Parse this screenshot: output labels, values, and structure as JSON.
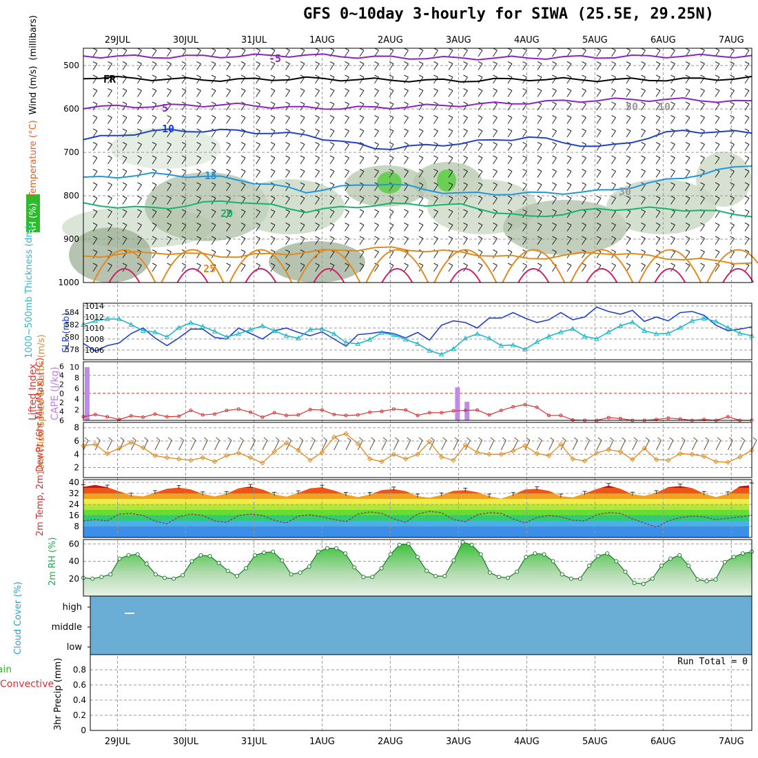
{
  "page": {
    "title": "GFS 0~10day 3-hourly for SIWA (25.5E, 29.25N)",
    "colors": {
      "purple": "#8a22c4",
      "blue": "#1f3fd0",
      "cyan": "#1e96e0",
      "green": "#13b56a",
      "orange": "#e08a1e",
      "magenta": "#d0206a",
      "grid": "#999999",
      "cloud": "#6aaed6"
    }
  },
  "chart_data": [
    {
      "type": "heatmap",
      "name": "upper-air",
      "ylabel_parts": [
        "RH (%)",
        "Temperature (°C)",
        "Wind (m/s)",
        "(millibars)"
      ],
      "yticks": [
        500,
        600,
        700,
        800,
        900,
        1000
      ],
      "ylim": [
        460,
        1000
      ],
      "dates": [
        "29JUL",
        "30JUL",
        "31JUL",
        "1AUG",
        "2AUG",
        "3AUG",
        "4AUG",
        "5AUG",
        "6AUG",
        "7AUG"
      ],
      "x_days": [
        0.5,
        1.5,
        2.5,
        3.5,
        4.5,
        5.5,
        6.5,
        7.5,
        8.5,
        9.5
      ],
      "xlim": [
        0,
        9.8
      ],
      "contours": [
        {
          "label": "-5",
          "color": "#8a22c4",
          "values": [
            478,
            480,
            478,
            476,
            481,
            483,
            482,
            480,
            478,
            478
          ]
        },
        {
          "label": "FR",
          "color": "#000000",
          "values": [
            527,
            531,
            533,
            530,
            533,
            535,
            531,
            533,
            532,
            529
          ]
        },
        {
          "label": "5",
          "color": "#8a22c4",
          "values": [
            596,
            593,
            590,
            598,
            597,
            591,
            585,
            579,
            578,
            584
          ]
        },
        {
          "label": "10",
          "color": "#1f3fd0",
          "values": [
            670,
            650,
            650,
            660,
            692,
            680,
            665,
            690,
            650,
            655
          ]
        },
        {
          "label": "15",
          "color": "#1e96e0",
          "values": [
            760,
            750,
            760,
            790,
            770,
            795,
            795,
            790,
            760,
            728
          ]
        },
        {
          "label": "20",
          "color": "#13b56a",
          "values": [
            820,
            830,
            810,
            835,
            820,
            820,
            850,
            830,
            830,
            845
          ]
        },
        {
          "label": "25",
          "color": "#e08a1e",
          "values": [
            940,
            930,
            940,
            930,
            920,
            930,
            945,
            930,
            945,
            955
          ]
        }
      ],
      "contour_labels": [
        "-5",
        "FR",
        "5",
        "10",
        "15",
        "20",
        "25",
        "50",
        "30",
        "10"
      ]
    },
    {
      "type": "line",
      "name": "thickness-slp",
      "ylabel_left": "1000~500mb Thickness (dm)",
      "ylabel_right": "SLP (mb)",
      "yticks_left": [
        578,
        580,
        582,
        584
      ],
      "yticks_right": [
        1006,
        1008,
        1010,
        1012,
        1014
      ],
      "series": [
        {
          "name": "SLP (mb)",
          "color": "#1f3fd0",
          "values": [
            1007.2,
            1005.8,
            1006.8,
            1007.3,
            1009.0,
            1010.0,
            1008.2,
            1006.8,
            1008.2,
            1009.8,
            1009.8,
            1008.3,
            1008.0,
            1010.0,
            1009.0,
            1008.0,
            1009.5,
            1010.0,
            1009.2,
            1008.6,
            1009.3,
            1008.0,
            1006.7,
            1008.8,
            1009.0,
            1009.3,
            1009.0,
            1008.2,
            1009.2,
            1007.8,
            1010.5,
            1011.3,
            1011.0,
            1010.0,
            1011.8,
            1011.8,
            1012.8,
            1011.8,
            1011.0,
            1011.5,
            1012.8,
            1011.5,
            1012.0,
            1013.8,
            1013.0,
            1012.5,
            1013.2,
            1011.2,
            1012.0,
            1011.3,
            1012.8,
            1013.0,
            1012.3,
            1010.5,
            1009.5,
            1009.8,
            1010.2
          ],
          "axis": "right"
        },
        {
          "name": "Thickness (dm)",
          "color": "#20b8c8",
          "values": [
            582.0,
            582.6,
            582.9,
            582.9,
            582.0,
            581.0,
            580.8,
            580.0,
            581.5,
            582.3,
            581.7,
            580.9,
            580.0,
            580.5,
            581.2,
            581.8,
            581.0,
            580.2,
            579.8,
            581.2,
            581.3,
            580.5,
            579.1,
            578.9,
            579.6,
            580.7,
            580.3,
            579.6,
            578.9,
            577.8,
            577.2,
            578.1,
            579.8,
            580.5,
            579.8,
            578.6,
            578.7,
            578.0,
            579.2,
            580.1,
            580.8,
            581.3,
            580.1,
            579.7,
            580.8,
            581.8,
            582.4,
            581.0,
            580.5,
            580.6,
            581.5,
            582.6,
            583.0,
            582.5,
            581.5,
            580.6,
            580.2
          ],
          "axis": "left"
        }
      ]
    },
    {
      "type": "bar",
      "name": "cape-lifted-index",
      "ylabel_left": "Lifted Index",
      "ylabel_right": "CAPE (J/kg)",
      "yticks_li": [
        -6,
        -4,
        -2,
        0,
        2,
        4,
        6
      ],
      "yticks_cape": [
        2,
        4,
        6,
        8,
        10
      ],
      "cape_bars": [
        {
          "day": 0.05,
          "value": 10
        },
        {
          "day": 5.48,
          "value": 6.2
        },
        {
          "day": 5.62,
          "value": 3.5
        }
      ],
      "lifted_index": [
        5.2,
        4.7,
        5.2,
        5.8,
        5.0,
        5.3,
        4.6,
        5.2,
        5.1,
        3.8,
        4.8,
        4.6,
        3.8,
        3.5,
        4.2,
        5.3,
        4.3,
        4.9,
        4.8,
        3.6,
        3.7,
        4.7,
        4.9,
        4.8,
        4.2,
        4.0,
        3.5,
        3.7,
        4.9,
        4.3,
        4.3,
        3.9,
        3.8,
        3.7,
        4.8,
        3.8,
        3.0,
        2.5,
        3.1,
        4.9,
        4.9,
        5.9,
        6.0,
        6.0,
        5.4,
        5.6,
        6.0,
        6.0,
        5.8,
        5.5,
        5.7,
        6.0,
        5.8,
        6.0,
        5.2,
        6.0,
        6.0
      ]
    },
    {
      "type": "line",
      "name": "wind-10m",
      "ylabel": "10m Wind Speed & Barbs (m/s)",
      "yticks": [
        2,
        4,
        6,
        8
      ],
      "series": [
        {
          "name": "10m Wind Speed",
          "color": "#e08a1e",
          "values": [
            5.3,
            5.5,
            4.1,
            4.9,
            5.8,
            5.0,
            3.8,
            3.5,
            3.3,
            3.1,
            3.5,
            2.9,
            3.8,
            4.2,
            3.5,
            2.7,
            4.4,
            5.7,
            4.6,
            3.1,
            4.3,
            6.6,
            7.1,
            5.6,
            3.3,
            2.9,
            4.0,
            3.3,
            4.0,
            5.9,
            3.6,
            3.1,
            5.4,
            4.3,
            4.0,
            4.0,
            4.5,
            5.3,
            4.1,
            3.8,
            5.5,
            3.3,
            3.0,
            4.2,
            4.7,
            4.4,
            3.2,
            4.9,
            3.2,
            3.1,
            4.1,
            4.0,
            3.7,
            2.9,
            2.8,
            3.6,
            4.6
          ]
        }
      ]
    },
    {
      "type": "area",
      "name": "temperature-2m",
      "ylabel": "2m Temp, 2m DewPt (6hr Min/Max) (°C)",
      "yticks": [
        8,
        16,
        24,
        32,
        40
      ],
      "series": [
        {
          "name": "2m Temp",
          "values": [
            36.8,
            38.1,
            36.5,
            33.5,
            30.6,
            29.8,
            32.5,
            35.4,
            36.2,
            34.9,
            31.6,
            29.8,
            31.8,
            35.7,
            37.0,
            34.9,
            31.3,
            29.6,
            32.4,
            35.7,
            36.4,
            34.1,
            31.2,
            29.3,
            31.2,
            34.4,
            35.1,
            33.6,
            30.0,
            28.9,
            30.8,
            33.8,
            34.3,
            32.9,
            30.0,
            28.2,
            31.1,
            34.8,
            35.3,
            33.9,
            30.0,
            29.1,
            32.0,
            35.1,
            37.7,
            35.3,
            31.4,
            30.2,
            32.5,
            36.5,
            37.3,
            35.9,
            31.8,
            29.3,
            31.6,
            37.2,
            38.0
          ]
        },
        {
          "name": "2m DewPt",
          "values": [
            12.0,
            13.0,
            12.0,
            17.0,
            17.5,
            16.0,
            12.0,
            10.0,
            15.0,
            17.0,
            16.0,
            12.0,
            11.0,
            16.0,
            17.0,
            16.0,
            12.5,
            10.5,
            15.5,
            16.5,
            15.0,
            13.0,
            11.5,
            17.0,
            18.5,
            17.5,
            13.5,
            11.0,
            17.0,
            19.0,
            18.0,
            13.0,
            11.5,
            16.5,
            18.0,
            17.5,
            13.5,
            10.5,
            14.5,
            16.0,
            15.0,
            12.5,
            12.0,
            16.5,
            18.0,
            17.5,
            13.5,
            10.5,
            7.5,
            12.0,
            14.5,
            15.5,
            15.0,
            13.0,
            14.0,
            15.0,
            16.0
          ]
        }
      ],
      "ylim": [
        0,
        42
      ]
    },
    {
      "type": "area",
      "name": "rh-2m",
      "ylabel": "2m RH (%)",
      "yticks": [
        20,
        40,
        60
      ],
      "series": [
        {
          "name": "2m RH",
          "color": "#17b24a",
          "values": [
            21,
            20,
            22,
            25,
            43,
            47,
            48,
            37,
            25,
            21,
            20,
            24,
            40,
            47,
            46,
            38,
            29,
            23,
            32,
            47,
            50,
            51,
            41,
            25,
            27,
            34,
            51,
            55,
            55,
            49,
            33,
            22,
            22,
            32,
            48,
            59,
            60,
            45,
            29,
            23,
            23,
            41,
            62,
            59,
            48,
            27,
            22,
            21,
            28,
            45,
            49,
            48,
            40,
            25,
            20,
            20,
            35,
            46,
            49,
            40,
            28,
            15,
            14,
            20,
            35,
            43,
            47,
            35,
            19,
            17,
            19,
            39,
            45,
            49,
            51
          ]
        }
      ],
      "ylim": [
        0,
        65
      ]
    },
    {
      "type": "heatmap",
      "name": "cloud-cover",
      "ylabel": "Cloud Cover (%)",
      "levels": [
        "high",
        "middle",
        "low"
      ],
      "fill": "full"
    },
    {
      "type": "bar",
      "name": "precip",
      "ylabel_parts": [
        "Total / Rain",
        "Convective",
        "3hr Precip (mm)"
      ],
      "yticks": [
        0,
        0.2,
        0.4,
        0.6,
        0.8
      ],
      "ylim": [
        0,
        1.0
      ],
      "values": [],
      "run_total_label": "Run Total = 0"
    }
  ]
}
